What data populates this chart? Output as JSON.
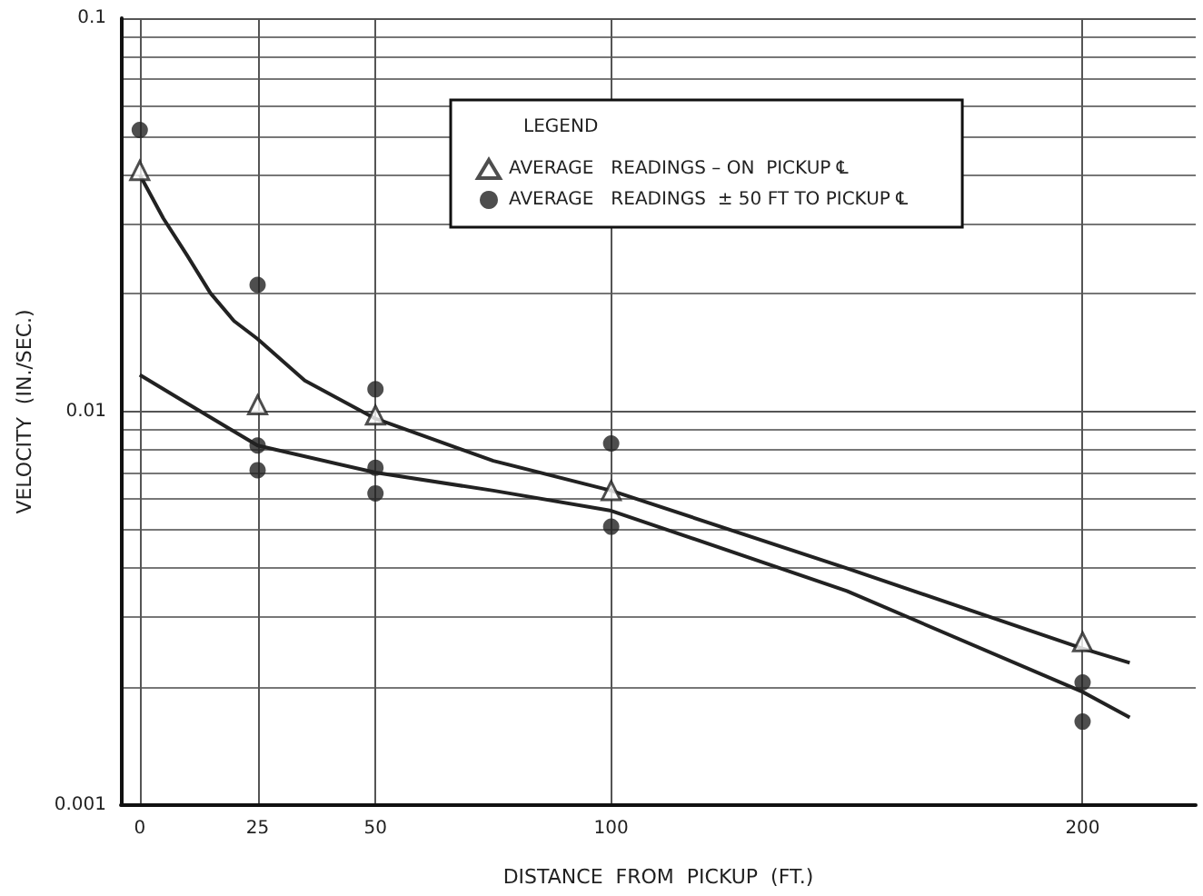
{
  "chart_data": {
    "type": "scatter",
    "xlabel": "DISTANCE  FROM  PICKUP  (FT.)",
    "ylabel": "VELOCITY  (IN./SEC.)",
    "legend_title": "LEGEND",
    "xlim": [
      -4,
      224
    ],
    "xticks": [
      0,
      25,
      50,
      100,
      200
    ],
    "ylim": [
      0.001,
      0.1
    ],
    "yticks": [
      0.001,
      0.01,
      0.1
    ],
    "log": "y",
    "grid": true,
    "legend": "top right",
    "series": [
      {
        "name": "AVERAGE   READINGS – ON  PICKUP ℄",
        "marker": "triangle",
        "color": "#222222",
        "x": [
          0,
          25,
          50,
          100,
          200
        ],
        "values": [
          0.041,
          0.0104,
          0.0098,
          0.0063,
          0.0026
        ]
      },
      {
        "name": "AVERAGE   READINGS  ± 50 FT TO PICKUP ℄",
        "marker": "circle",
        "color": "#222222",
        "x": [
          0,
          25,
          25,
          25,
          50,
          50,
          50,
          100,
          100,
          200,
          200
        ],
        "values": [
          0.052,
          0.021,
          0.0082,
          0.0071,
          0.0114,
          0.0072,
          0.0062,
          0.0083,
          0.0051,
          0.00205,
          0.00163
        ]
      },
      {
        "type": "line",
        "marker": "none",
        "color": "#222222",
        "x": [
          0,
          5,
          10,
          15,
          20,
          25,
          35,
          50,
          75,
          100,
          150,
          200,
          210
        ],
        "values": [
          0.04,
          0.031,
          0.025,
          0.02,
          0.017,
          0.0153,
          0.012,
          0.0096,
          0.0075,
          0.0063,
          0.004,
          0.0025,
          0.0023
        ]
      },
      {
        "type": "line",
        "marker": "none",
        "color": "#222222",
        "x": [
          0,
          10,
          25,
          50,
          75,
          100,
          150,
          200,
          210
        ],
        "values": [
          0.0124,
          0.0105,
          0.0082,
          0.007,
          0.0063,
          0.0056,
          0.0035,
          0.00194,
          0.00167
        ]
      }
    ]
  }
}
